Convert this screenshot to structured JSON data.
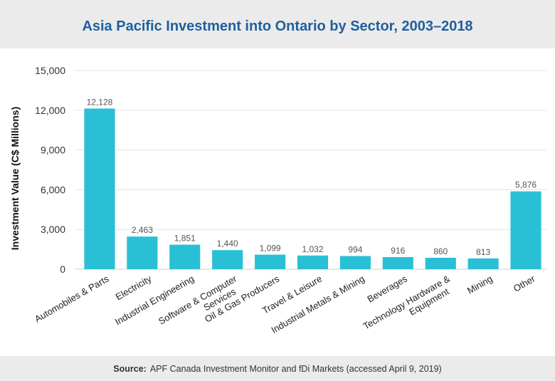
{
  "header": {
    "title": "Asia Pacific Investment into Ontario by Sector, 2003–2018"
  },
  "footer": {
    "source_label": "Source:",
    "source_text": "APF Canada Investment Monitor and fDi Markets (accessed April 9, 2019)"
  },
  "chart_data": {
    "type": "bar",
    "title": "Asia Pacific Investment into Ontario by Sector, 2003–2018",
    "xlabel": "",
    "ylabel": "Investment Value (C$ Millions)",
    "ylim": [
      0,
      15000
    ],
    "yticks": [
      0,
      3000,
      6000,
      9000,
      12000,
      15000
    ],
    "ytick_labels": [
      "0",
      "3,000",
      "6,000",
      "9,000",
      "12,000",
      "15,000"
    ],
    "grid": true,
    "bar_color": "#29c0d6",
    "categories": [
      [
        "Automobiles & Parts"
      ],
      [
        "Electricity"
      ],
      [
        "Industrial Engineering"
      ],
      [
        "Software & Computer",
        "Services"
      ],
      [
        "Oil & Gas Producers"
      ],
      [
        "Travel & Leisure"
      ],
      [
        "Industrial Metals & Mining"
      ],
      [
        "Beverages"
      ],
      [
        "Technology Hardware &",
        "Equipment"
      ],
      [
        "Mining"
      ],
      [
        "Other"
      ]
    ],
    "values": [
      12128,
      2463,
      1851,
      1440,
      1099,
      1032,
      994,
      916,
      860,
      813,
      5876
    ],
    "value_labels": [
      "12,128",
      "2,463",
      "1,851",
      "1,440",
      "1,099",
      "1,032",
      "994",
      "916",
      "860",
      "813",
      "5,876"
    ]
  }
}
